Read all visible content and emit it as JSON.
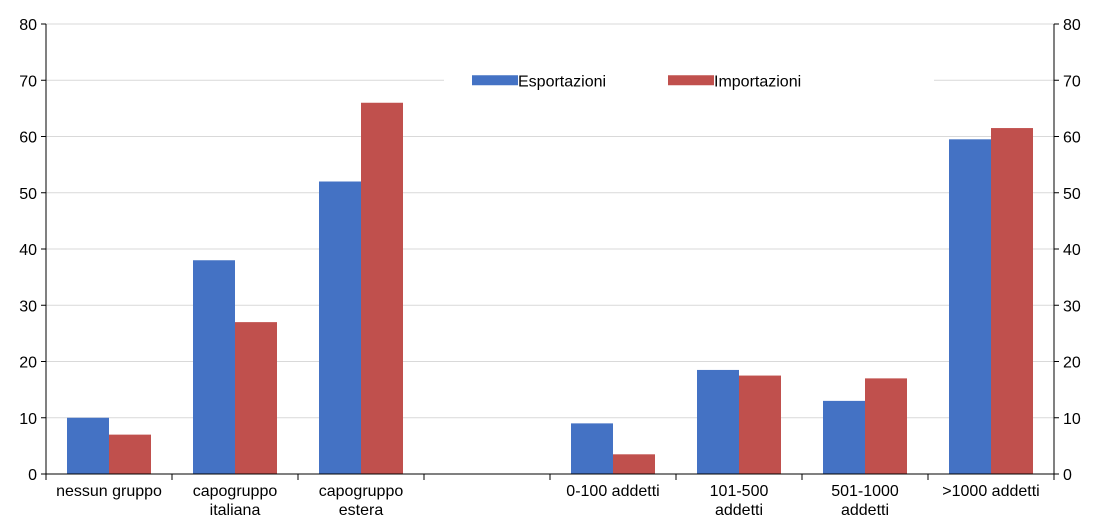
{
  "chart_data": {
    "type": "bar",
    "categories": [
      [
        "nessun gruppo"
      ],
      [
        "capogruppo",
        "italiana"
      ],
      [
        "capogruppo",
        "estera"
      ],
      [],
      [
        "0-100 addetti"
      ],
      [
        "101-500",
        "addetti"
      ],
      [
        "501-1000",
        "addetti"
      ],
      [
        ">1000 addetti"
      ]
    ],
    "series": [
      {
        "name": "Esportazioni",
        "color": "#4472C4",
        "values": [
          10,
          38,
          52,
          null,
          9,
          18.5,
          13,
          59.5
        ]
      },
      {
        "name": "Importazioni",
        "color": "#C0504D",
        "values": [
          7,
          27,
          66,
          null,
          3.5,
          17.5,
          17,
          61.5
        ]
      }
    ],
    "ylim": [
      0,
      80
    ],
    "yticks": [
      0,
      10,
      20,
      30,
      40,
      50,
      60,
      70,
      80
    ],
    "grid": true,
    "legend": "top-right",
    "right_axis": true
  }
}
